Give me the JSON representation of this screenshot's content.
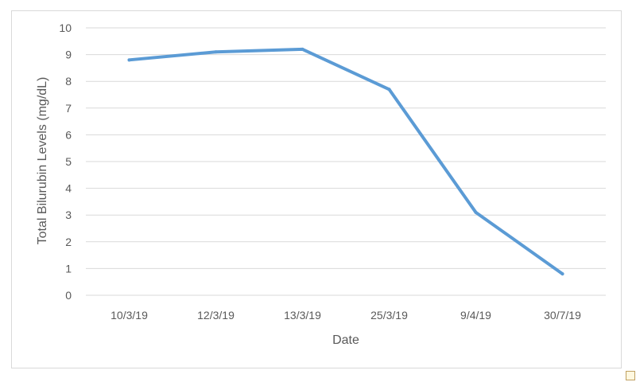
{
  "chart_data": {
    "type": "line",
    "title": "",
    "xlabel": "Date",
    "ylabel": "Total Bilurubin Levels (mg/dL)",
    "categories": [
      "10/3/19",
      "12/3/19",
      "13/3/19",
      "25/3/19",
      "9/4/19",
      "30/7/19"
    ],
    "series": [
      {
        "values": [
          8.8,
          9.1,
          9.2,
          7.7,
          3.1,
          0.8
        ],
        "color": "#5b9bd5"
      }
    ],
    "ylim": [
      0,
      10
    ],
    "yticks": [
      "0",
      "1",
      "2",
      "3",
      "4",
      "5",
      "6",
      "7",
      "8",
      "9",
      "10"
    ],
    "grid": true,
    "legend": "none"
  }
}
